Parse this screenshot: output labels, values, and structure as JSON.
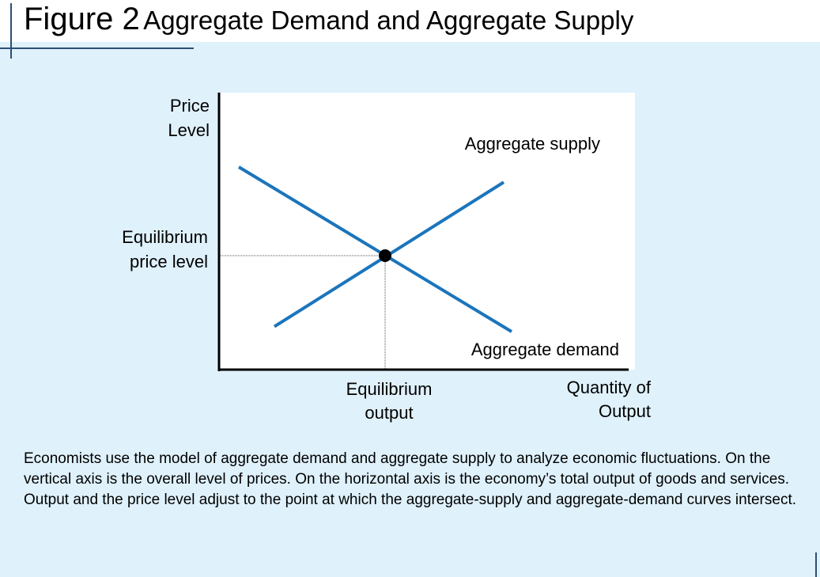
{
  "header": {
    "figure_label": "Figure 2",
    "title": "Aggregate Demand and Aggregate Supply"
  },
  "chart_data": {
    "type": "line",
    "x_label": "Quantity of Output",
    "y_label": "Price Level",
    "x_range": [
      0,
      10
    ],
    "y_range": [
      0,
      10
    ],
    "series": [
      {
        "name": "Aggregate supply",
        "color": "#1b75bc",
        "x": [
          1.4,
          7.2
        ],
        "y": [
          1.7,
          7.4
        ]
      },
      {
        "name": "Aggregate demand",
        "color": "#1b75bc",
        "x": [
          0.5,
          7.4
        ],
        "y": [
          8.0,
          1.5
        ]
      }
    ],
    "equilibrium": {
      "x": 4.2,
      "y": 4.5,
      "output_label": [
        "Equilibrium",
        "output"
      ],
      "price_label": [
        "Equilibrium",
        "price level"
      ]
    },
    "axis_labels": {
      "y": [
        "Price",
        "Level"
      ],
      "x": [
        "Quantity of",
        "Output"
      ]
    }
  },
  "caption": {
    "paragraph_1": "Economists use the model of aggregate demand and aggregate supply to analyze economic fluctuations. On the vertical axis is the overall level of prices. On the horizontal axis is the economy’s total output of goods and services.",
    "paragraph_2": "Output and the price level adjust to the point at which the aggregate-supply and aggregate-demand curves intersect."
  }
}
